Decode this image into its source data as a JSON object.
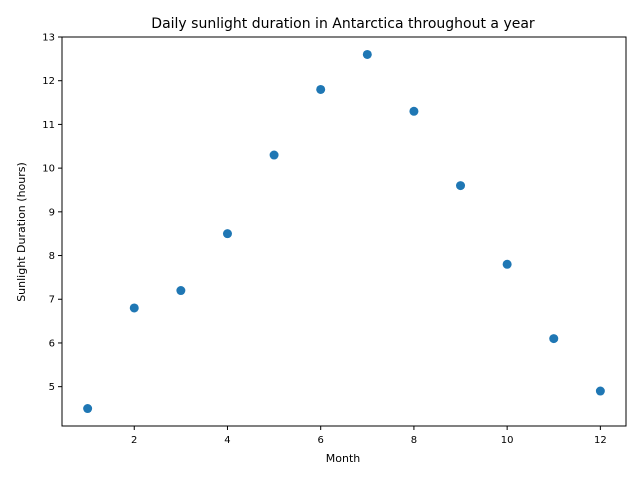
{
  "chart_data": {
    "type": "scatter",
    "title": "Daily sunlight duration in Antarctica throughout a year",
    "xlabel": "Month",
    "ylabel": "Sunlight Duration (hours)",
    "x": [
      1,
      2,
      3,
      4,
      5,
      6,
      7,
      8,
      9,
      10,
      11,
      12
    ],
    "y": [
      4.5,
      6.8,
      7.2,
      8.5,
      10.3,
      11.8,
      12.6,
      11.3,
      9.6,
      7.8,
      6.1,
      4.9
    ],
    "xlim": [
      0.45,
      12.55
    ],
    "ylim": [
      4.1,
      13.0
    ],
    "xticks": [
      2,
      4,
      6,
      8,
      10,
      12
    ],
    "yticks": [
      5,
      6,
      7,
      8,
      9,
      10,
      11,
      12,
      13
    ],
    "grid": false,
    "marker_color": "#1f77b4"
  }
}
